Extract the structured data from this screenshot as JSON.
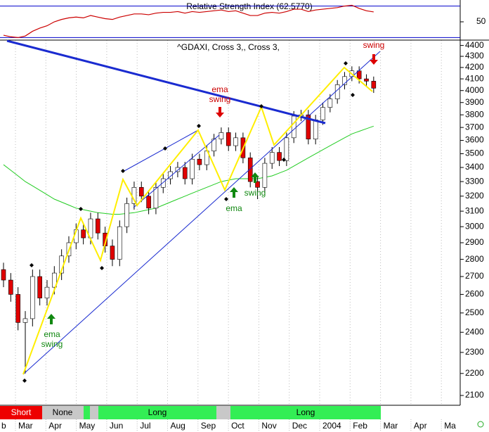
{
  "chart_data": [
    {
      "type": "line",
      "title": "Relative Strength Index (62.5770)",
      "values": [
        33,
        31,
        30,
        32,
        38,
        42,
        45,
        50,
        53,
        55,
        56,
        55,
        58,
        56,
        54,
        53,
        56,
        58,
        60,
        60,
        59,
        61,
        62,
        62,
        63,
        61,
        63,
        62,
        63,
        64,
        65,
        63,
        64,
        61,
        58,
        58,
        61,
        62,
        61,
        63,
        66,
        66,
        63,
        65,
        66,
        67,
        68,
        70,
        71,
        67,
        64,
        62.577
      ],
      "color": "#cc0000",
      "ylim": [
        25,
        75
      ],
      "yticks": [
        50
      ],
      "levels": [
        30,
        70
      ],
      "level_color": "#0000cc"
    },
    {
      "type": "candlestick",
      "title": "^GDAXI, Cross 3,, Cross 3,",
      "categories": [
        "b",
        "Mar",
        "Apr",
        "May",
        "Jun",
        "Jul",
        "Aug",
        "Sep",
        "Oct",
        "Nov",
        "Dec",
        "2004",
        "Feb",
        "Mar",
        "Apr",
        "Ma"
      ],
      "open": [
        2740,
        2680,
        2600,
        2450,
        2470,
        2700,
        2580,
        2640,
        2720,
        2820,
        2900,
        2980,
        2930,
        3050,
        2960,
        2880,
        2800,
        3000,
        3150,
        3260,
        3200,
        3120,
        3260,
        3320,
        3370,
        3400,
        3320,
        3460,
        3420,
        3520,
        3610,
        3660,
        3560,
        3620,
        3470,
        3300,
        3260,
        3430,
        3510,
        3450,
        3620,
        3790,
        3800,
        3610,
        3760,
        3860,
        3930,
        4050,
        4120,
        4170,
        4100,
        4080
      ],
      "high": [
        2780,
        2720,
        2640,
        2510,
        2740,
        2740,
        2680,
        2760,
        2860,
        2940,
        3020,
        3020,
        3090,
        3090,
        3000,
        2920,
        3040,
        3190,
        3300,
        3300,
        3240,
        3300,
        3360,
        3410,
        3440,
        3440,
        3500,
        3500,
        3560,
        3650,
        3700,
        3700,
        3660,
        3660,
        3510,
        3340,
        3470,
        3550,
        3550,
        3660,
        3830,
        3840,
        3840,
        3800,
        3900,
        3970,
        4090,
        4160,
        4210,
        4210,
        4140,
        4120
      ],
      "low": [
        2640,
        2560,
        2410,
        2200,
        2430,
        2540,
        2540,
        2600,
        2680,
        2780,
        2860,
        2890,
        2890,
        2920,
        2840,
        2760,
        2760,
        2960,
        3110,
        3160,
        3080,
        3080,
        3220,
        3280,
        3330,
        3280,
        3280,
        3380,
        3380,
        3480,
        3570,
        3520,
        3520,
        3430,
        3260,
        3180,
        3220,
        3390,
        3410,
        3410,
        3580,
        3750,
        3570,
        3570,
        3720,
        3820,
        3890,
        4010,
        4080,
        4060,
        4040,
        3980
      ],
      "close": [
        2680,
        2600,
        2450,
        2470,
        2700,
        2580,
        2640,
        2720,
        2820,
        2900,
        2980,
        2930,
        3050,
        2960,
        2880,
        2800,
        3000,
        3150,
        3260,
        3200,
        3120,
        3260,
        3320,
        3370,
        3400,
        3320,
        3460,
        3420,
        3520,
        3610,
        3660,
        3560,
        3620,
        3470,
        3300,
        3260,
        3430,
        3510,
        3450,
        3620,
        3790,
        3800,
        3610,
        3760,
        3860,
        3930,
        4050,
        4120,
        4170,
        4100,
        4080,
        4020
      ],
      "up_color": "#ffffff",
      "down_color": "#e00000",
      "ma": {
        "color": "#22cc22",
        "values": [
          3420,
          3380,
          3340,
          3300,
          3270,
          3240,
          3210,
          3180,
          3160,
          3140,
          3120,
          3110,
          3100,
          3090,
          3085,
          3080,
          3080,
          3085,
          3090,
          3100,
          3110,
          3120,
          3140,
          3160,
          3180,
          3200,
          3220,
          3240,
          3260,
          3280,
          3300,
          3310,
          3320,
          3320,
          3320,
          3320,
          3330,
          3340,
          3360,
          3380,
          3410,
          3440,
          3470,
          3500,
          3530,
          3560,
          3590,
          3620,
          3650,
          3670,
          3690,
          3710
        ]
      },
      "ylim": [
        2060,
        4450
      ],
      "log_scale": true,
      "yticks": [
        2100,
        2200,
        2300,
        2400,
        2500,
        2600,
        2700,
        2800,
        2900,
        3000,
        3100,
        3200,
        3300,
        3400,
        3500,
        3600,
        3700,
        3800,
        3900,
        4000,
        4100,
        4200,
        4300,
        4400
      ],
      "signals": [
        {
          "label": "Short",
          "color": "#ee0000"
        },
        {
          "label": "None",
          "color": "#c8c8c8"
        },
        {
          "label": "Long",
          "color": "#33ee55"
        },
        {
          "label": "Long",
          "color": "#33ee55"
        }
      ],
      "annotations": [
        {
          "text": "ema",
          "color": "#118811"
        },
        {
          "text": "swing",
          "color": "#118811"
        },
        {
          "text": "ema",
          "color": "#cc0000"
        },
        {
          "text": "swing",
          "color": "#cc0000"
        },
        {
          "text": "swing",
          "color": "#118811"
        },
        {
          "text": "ema",
          "color": "#118811"
        },
        {
          "text": "swing",
          "color": "#cc0000"
        }
      ]
    }
  ]
}
